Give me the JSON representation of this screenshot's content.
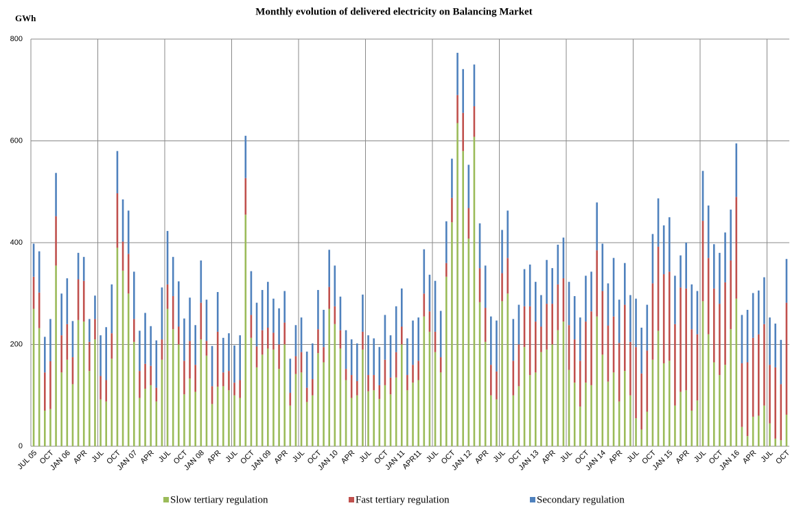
{
  "chart_data": {
    "type": "bar",
    "stacked": true,
    "title": "Monthly evolution of delivered electricity on Balancing Market",
    "y_label": "GWh",
    "categories": [
      "JUL 05",
      null,
      null,
      "OCT",
      null,
      null,
      "JAN 06",
      null,
      null,
      "APR",
      null,
      null,
      "JUL",
      null,
      null,
      "OCT",
      null,
      null,
      "JAN 07",
      null,
      null,
      "APR",
      null,
      null,
      "JUL",
      null,
      null,
      "OCT",
      null,
      null,
      "JAN 08",
      null,
      null,
      "APR",
      null,
      null,
      "JUL",
      null,
      null,
      "OCT",
      null,
      null,
      "JAN 09",
      null,
      null,
      "APR",
      null,
      null,
      "JUL",
      null,
      null,
      "OCT",
      null,
      null,
      "JAN 10",
      null,
      null,
      "APR",
      null,
      null,
      "JUL",
      null,
      null,
      "OCT",
      null,
      null,
      "JAN 11",
      null,
      null,
      "APR11",
      null,
      null,
      "JUL",
      null,
      null,
      "OCT",
      null,
      null,
      "JAN 12",
      null,
      null,
      "APR",
      null,
      null,
      "JUL",
      null,
      null,
      "OCT",
      null,
      null,
      "JAN 13",
      null,
      null,
      "APR",
      null,
      null,
      "JUL",
      null,
      null,
      "OCT",
      null,
      null,
      "JAN 14",
      null,
      null,
      "APR",
      null,
      null,
      "JUL",
      null,
      null,
      "OCT",
      null,
      null,
      "JAN 15",
      null,
      null,
      "APR",
      null,
      null,
      "JUL",
      null,
      null,
      "OCT",
      null,
      null,
      "JAN 16",
      null,
      null,
      "APR",
      null,
      null,
      "JUL",
      null,
      null,
      "OCT"
    ],
    "series": [
      {
        "name": "Slow tertiary regulation",
        "color": "#9bbb59",
        "values": [
          270,
          232,
          70,
          73,
          355,
          145,
          170,
          122,
          248,
          245,
          148,
          210,
          92,
          88,
          172,
          390,
          345,
          300,
          205,
          95,
          113,
          120,
          88,
          170,
          270,
          230,
          200,
          102,
          133,
          107,
          210,
          178,
          83,
          117,
          118,
          110,
          100,
          95,
          455,
          213,
          155,
          180,
          192,
          190,
          152,
          200,
          80,
          142,
          145,
          87,
          100,
          183,
          165,
          270,
          240,
          192,
          130,
          95,
          100,
          190,
          108,
          110,
          93,
          120,
          102,
          135,
          200,
          110,
          125,
          130,
          255,
          225,
          185,
          145,
          333,
          440,
          635,
          580,
          408,
          608,
          283,
          205,
          100,
          92,
          285,
          300,
          100,
          118,
          195,
          140,
          145,
          185,
          190,
          200,
          228,
          245,
          150,
          125,
          78,
          125,
          120,
          255,
          180,
          127,
          145,
          88,
          148,
          100,
          55,
          33,
          68,
          170,
          227,
          163,
          168,
          80,
          107,
          110,
          70,
          90,
          285,
          220,
          165,
          140,
          160,
          230,
          290,
          38,
          20,
          58,
          60,
          80,
          45,
          15,
          12,
          62
        ]
      },
      {
        "name": "Fast tertiary regulation",
        "color": "#c0504d",
        "values": [
          63,
          70,
          75,
          94,
          97,
          73,
          70,
          53,
          80,
          80,
          57,
          40,
          46,
          42,
          50,
          107,
          57,
          78,
          45,
          53,
          49,
          38,
          27,
          40,
          48,
          65,
          35,
          66,
          74,
          53,
          72,
          29,
          35,
          108,
          27,
          38,
          25,
          35,
          72,
          45,
          41,
          48,
          41,
          33,
          48,
          43,
          25,
          35,
          40,
          28,
          32,
          47,
          30,
          43,
          35,
          36,
          22,
          45,
          28,
          35,
          32,
          30,
          27,
          50,
          33,
          50,
          35,
          30,
          35,
          38,
          45,
          40,
          40,
          30,
          27,
          48,
          55,
          75,
          60,
          60,
          67,
          67,
          60,
          55,
          55,
          70,
          68,
          82,
          80,
          135,
          100,
          50,
          90,
          80,
          90,
          85,
          88,
          85,
          90,
          120,
          145,
          130,
          125,
          110,
          110,
          115,
          130,
          105,
          140,
          110,
          120,
          150,
          165,
          175,
          175,
          160,
          205,
          200,
          160,
          130,
          158,
          150,
          145,
          140,
          162,
          135,
          200,
          125,
          145,
          155,
          160,
          160,
          115,
          140,
          110,
          220
        ]
      },
      {
        "name": "Secondary regulation",
        "color": "#4f81bd",
        "values": [
          65,
          81,
          70,
          83,
          85,
          82,
          90,
          71,
          52,
          47,
          45,
          46,
          80,
          104,
          96,
          83,
          83,
          85,
          93,
          79,
          100,
          78,
          93,
          102,
          105,
          77,
          89,
          83,
          85,
          78,
          83,
          81,
          79,
          78,
          68,
          74,
          73,
          88,
          83,
          86,
          86,
          79,
          90,
          67,
          71,
          62,
          67,
          61,
          68,
          71,
          70,
          77,
          73,
          73,
          80,
          66,
          76,
          70,
          74,
          73,
          78,
          72,
          75,
          88,
          83,
          90,
          75,
          72,
          87,
          85,
          87,
          72,
          100,
          91,
          82,
          77,
          83,
          86,
          85,
          82,
          88,
          83,
          95,
          100,
          85,
          93,
          82,
          78,
          73,
          82,
          78,
          62,
          86,
          70,
          78,
          80,
          85,
          85,
          85,
          90,
          78,
          94,
          93,
          83,
          115,
          85,
          82,
          92,
          95,
          90,
          90,
          97,
          95,
          96,
          107,
          95,
          63,
          90,
          88,
          85,
          98,
          103,
          87,
          100,
          98,
          100,
          105,
          95,
          103,
          88,
          86,
          92,
          93,
          86,
          87,
          86
        ]
      }
    ],
    "ylim": [
      0,
      800
    ],
    "yticks": [
      0,
      200,
      400,
      600,
      800
    ],
    "grid": true
  }
}
